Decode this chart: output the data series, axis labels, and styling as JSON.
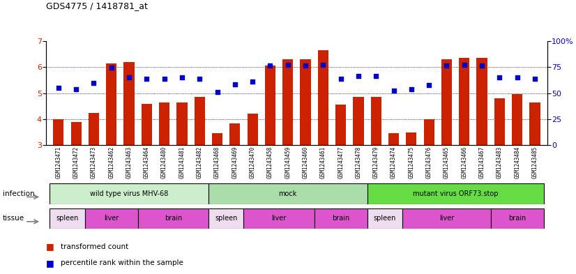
{
  "title": "GDS4775 / 1418781_at",
  "samples": [
    "GSM1243471",
    "GSM1243472",
    "GSM1243473",
    "GSM1243462",
    "GSM1243463",
    "GSM1243464",
    "GSM1243480",
    "GSM1243481",
    "GSM1243482",
    "GSM1243468",
    "GSM1243469",
    "GSM1243470",
    "GSM1243458",
    "GSM1243459",
    "GSM1243460",
    "GSM1243461",
    "GSM1243477",
    "GSM1243478",
    "GSM1243479",
    "GSM1243474",
    "GSM1243475",
    "GSM1243476",
    "GSM1243465",
    "GSM1243466",
    "GSM1243467",
    "GSM1243483",
    "GSM1243484",
    "GSM1243485"
  ],
  "bar_values": [
    4.0,
    3.9,
    4.25,
    6.15,
    6.2,
    4.6,
    4.65,
    4.65,
    4.85,
    3.45,
    3.85,
    4.2,
    6.05,
    6.3,
    6.3,
    6.65,
    4.55,
    4.85,
    4.85,
    3.45,
    3.5,
    4.0,
    6.3,
    6.35,
    6.35,
    4.8,
    4.95,
    4.65
  ],
  "dot_values_left_scale": [
    5.2,
    5.15,
    5.4,
    5.97,
    5.6,
    5.55,
    5.55,
    5.6,
    5.55,
    5.05,
    5.35,
    5.45,
    6.05,
    6.1,
    6.05,
    6.1,
    5.55,
    5.65,
    5.65,
    5.1,
    5.15,
    5.3,
    6.05,
    6.1,
    6.05,
    5.6,
    5.6,
    5.55
  ],
  "ylim_left": [
    3,
    7
  ],
  "ylim_right": [
    0,
    100
  ],
  "yticks_left": [
    3,
    4,
    5,
    6,
    7
  ],
  "yticks_right": [
    0,
    25,
    50,
    75,
    100
  ],
  "ytick_right_labels": [
    "0",
    "25",
    "50",
    "75",
    "100%"
  ],
  "infection_groups": [
    {
      "label": "wild type virus MHV-68",
      "start": 0,
      "end": 9,
      "color": "#AADDAA"
    },
    {
      "label": "mock",
      "start": 9,
      "end": 18,
      "color": "#BBEEAA"
    },
    {
      "label": "mutant virus ORF73.stop",
      "start": 18,
      "end": 28,
      "color": "#66CC55"
    }
  ],
  "tissue_groups": [
    {
      "label": "spleen",
      "start": 0,
      "end": 2,
      "color": "#EECCEE"
    },
    {
      "label": "liver",
      "start": 2,
      "end": 5,
      "color": "#CC55CC"
    },
    {
      "label": "brain",
      "start": 5,
      "end": 9,
      "color": "#CC55CC"
    },
    {
      "label": "spleen",
      "start": 9,
      "end": 11,
      "color": "#EECCEE"
    },
    {
      "label": "liver",
      "start": 11,
      "end": 15,
      "color": "#CC55CC"
    },
    {
      "label": "brain",
      "start": 15,
      "end": 18,
      "color": "#CC55CC"
    },
    {
      "label": "spleen",
      "start": 18,
      "end": 20,
      "color": "#EECCEE"
    },
    {
      "label": "liver",
      "start": 20,
      "end": 25,
      "color": "#CC55CC"
    },
    {
      "label": "brain",
      "start": 25,
      "end": 28,
      "color": "#CC55CC"
    }
  ],
  "bar_color": "#CC2200",
  "dot_color": "#0000CC",
  "grid_color": "#000000",
  "grid_yticks": [
    4,
    5,
    6
  ]
}
